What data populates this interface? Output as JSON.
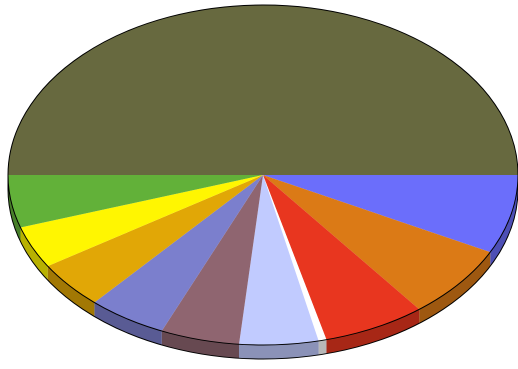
{
  "chart_data": {
    "type": "pie",
    "style": "3d",
    "title": "",
    "legend": "none",
    "labels_shown": false,
    "slices": [
      {
        "value": 50.0,
        "color": "#67693f"
      },
      {
        "value": 7.5,
        "color": "#6b6efb"
      },
      {
        "value": 7.0,
        "color": "#db7a16"
      },
      {
        "value": 6.5,
        "color": "#e8361f"
      },
      {
        "value": 0.5,
        "color": "#ffffff"
      },
      {
        "value": 5.0,
        "color": "#c1cbff"
      },
      {
        "value": 5.0,
        "color": "#8f6570"
      },
      {
        "value": 5.0,
        "color": "#7b7fcd"
      },
      {
        "value": 4.5,
        "color": "#e1a706"
      },
      {
        "value": 4.0,
        "color": "#fff601"
      },
      {
        "value": 5.0,
        "color": "#62b139"
      }
    ]
  }
}
